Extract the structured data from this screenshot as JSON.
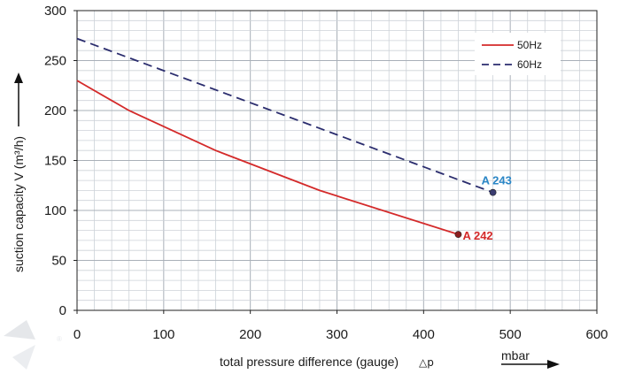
{
  "chart_data": {
    "type": "line",
    "xlabel": "total pressure difference (gauge)",
    "xlabel_symbol": "△p",
    "xunit": "mbar",
    "ylabel": "suction capacity V (m³/h)",
    "xlim": [
      0,
      600
    ],
    "ylim": [
      0,
      300
    ],
    "x_ticks": [
      0,
      100,
      200,
      300,
      400,
      500,
      600
    ],
    "y_ticks": [
      0,
      50,
      100,
      150,
      200,
      250,
      300
    ],
    "grid": true,
    "legend_position": "top-right",
    "series": [
      {
        "name": "50Hz",
        "color": "#d42a2a",
        "dash": "solid",
        "x": [
          0,
          60,
          160,
          280,
          440
        ],
        "y": [
          230,
          200,
          160,
          120,
          76
        ],
        "end_label": "A 242",
        "end_label_color": "#d42a2a"
      },
      {
        "name": "60Hz",
        "color": "#2b2d6e",
        "dash": "dashed",
        "x": [
          0,
          480
        ],
        "y": [
          272,
          118
        ],
        "end_label": "A 243",
        "end_label_color": "#2a86c6"
      }
    ]
  }
}
